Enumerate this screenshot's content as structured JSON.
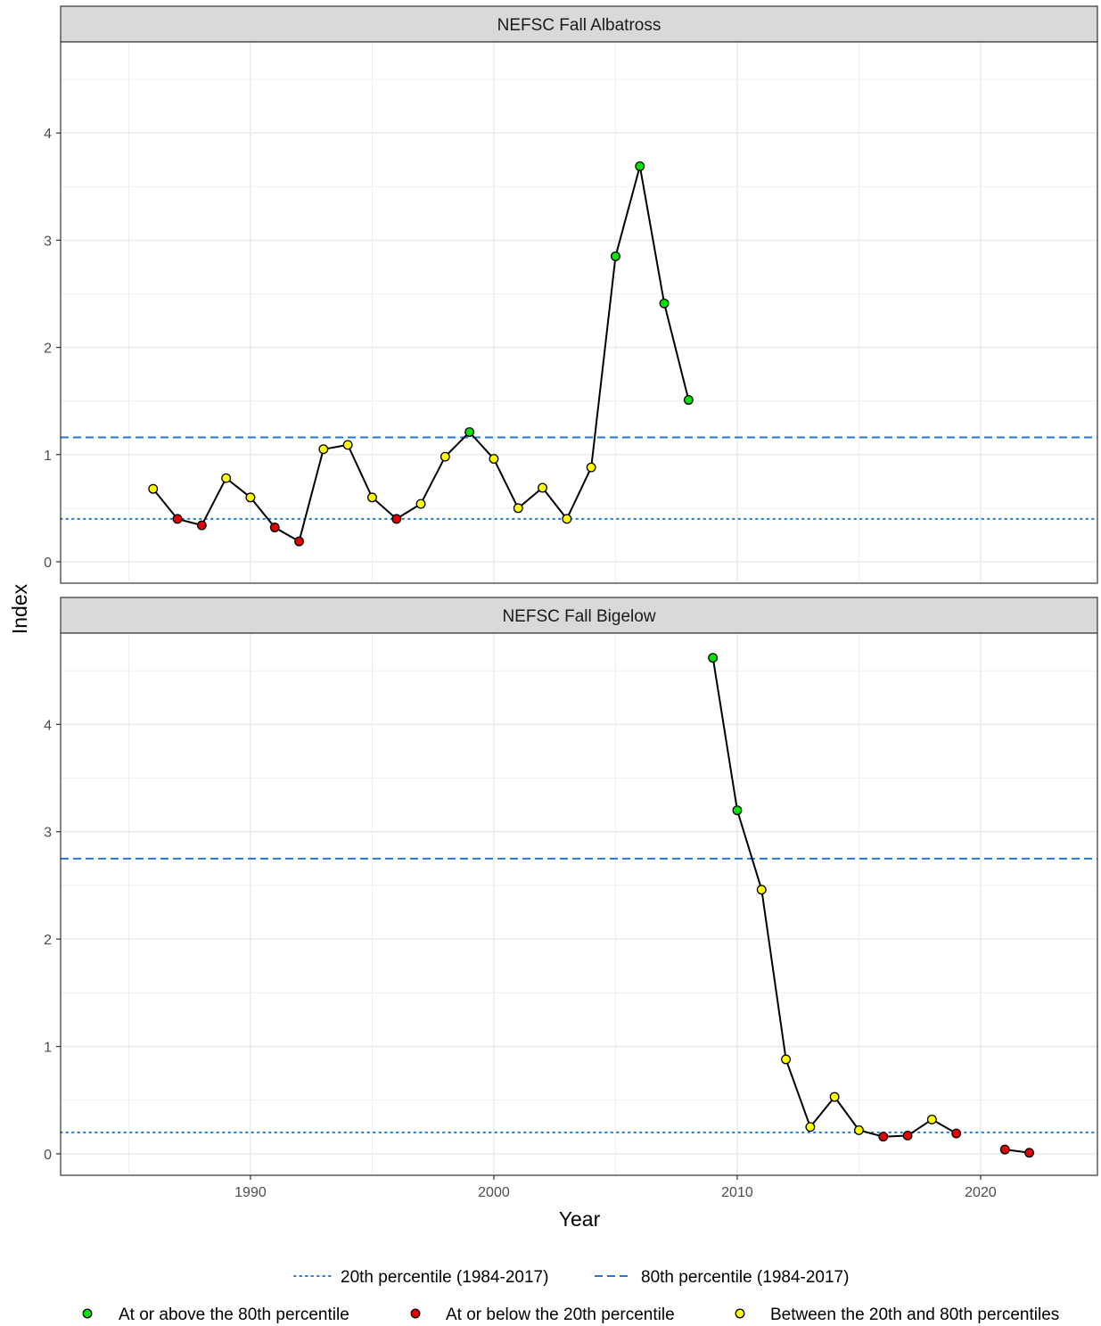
{
  "chart_data": {
    "type": "line",
    "xlabel": "Year",
    "ylabel": "Index",
    "xlim": [
      1982.2,
      2024.8
    ],
    "x_ticks": [
      1990,
      2000,
      2010,
      2020
    ],
    "x_tick_labels": [
      "1990",
      "2000",
      "2010",
      "2020"
    ],
    "x_minor_ticks": [
      1985,
      1995,
      2005,
      2015
    ],
    "y_ticks": [
      0,
      1,
      2,
      3,
      4
    ],
    "y_tick_labels": [
      "0",
      "1",
      "2",
      "3",
      "4"
    ],
    "y_minor_ticks": [
      0.5,
      1.5,
      2.5,
      3.5,
      4.5
    ],
    "ylim": [
      -0.2,
      4.85
    ],
    "grid": true,
    "colors": {
      "above": "#00e600",
      "below": "#e60000",
      "between": "#ffff00",
      "threshold_line": "#1f78d4",
      "series_line": "#000000",
      "strip_fill": "#d9d9d9",
      "grid": "#ebebeb"
    },
    "panels": [
      {
        "strip": "NEFSC Fall Albatross",
        "p20": 0.4,
        "p80": 1.16,
        "segments": [
          [
            {
              "x": 1986,
              "y": 0.68,
              "cat": "between"
            },
            {
              "x": 1987,
              "y": 0.4,
              "cat": "below"
            },
            {
              "x": 1988,
              "y": 0.34,
              "cat": "below"
            },
            {
              "x": 1989,
              "y": 0.78,
              "cat": "between"
            },
            {
              "x": 1990,
              "y": 0.6,
              "cat": "between"
            },
            {
              "x": 1991,
              "y": 0.32,
              "cat": "below"
            },
            {
              "x": 1992,
              "y": 0.19,
              "cat": "below"
            },
            {
              "x": 1993,
              "y": 1.05,
              "cat": "between"
            },
            {
              "x": 1994,
              "y": 1.09,
              "cat": "between"
            },
            {
              "x": 1995,
              "y": 0.6,
              "cat": "between"
            },
            {
              "x": 1996,
              "y": 0.4,
              "cat": "below"
            },
            {
              "x": 1997,
              "y": 0.54,
              "cat": "between"
            },
            {
              "x": 1998,
              "y": 0.98,
              "cat": "between"
            },
            {
              "x": 1999,
              "y": 1.21,
              "cat": "above"
            },
            {
              "x": 2000,
              "y": 0.96,
              "cat": "between"
            },
            {
              "x": 2001,
              "y": 0.5,
              "cat": "between"
            },
            {
              "x": 2002,
              "y": 0.69,
              "cat": "between"
            },
            {
              "x": 2003,
              "y": 0.4,
              "cat": "between"
            },
            {
              "x": 2004,
              "y": 0.88,
              "cat": "between"
            },
            {
              "x": 2005,
              "y": 2.85,
              "cat": "above"
            },
            {
              "x": 2006,
              "y": 3.69,
              "cat": "above"
            },
            {
              "x": 2007,
              "y": 2.41,
              "cat": "above"
            },
            {
              "x": 2008,
              "y": 1.51,
              "cat": "above"
            }
          ]
        ]
      },
      {
        "strip": "NEFSC Fall Bigelow",
        "p20": 0.2,
        "p80": 2.75,
        "segments": [
          [
            {
              "x": 2009,
              "y": 4.62,
              "cat": "above"
            },
            {
              "x": 2010,
              "y": 3.2,
              "cat": "above"
            },
            {
              "x": 2011,
              "y": 2.46,
              "cat": "between"
            },
            {
              "x": 2012,
              "y": 0.88,
              "cat": "between"
            },
            {
              "x": 2013,
              "y": 0.25,
              "cat": "between"
            },
            {
              "x": 2014,
              "y": 0.53,
              "cat": "between"
            },
            {
              "x": 2015,
              "y": 0.22,
              "cat": "between"
            },
            {
              "x": 2016,
              "y": 0.16,
              "cat": "below"
            },
            {
              "x": 2017,
              "y": 0.17,
              "cat": "below"
            },
            {
              "x": 2018,
              "y": 0.32,
              "cat": "between"
            },
            {
              "x": 2019,
              "y": 0.19,
              "cat": "below"
            }
          ],
          [
            {
              "x": 2021,
              "y": 0.04,
              "cat": "below"
            },
            {
              "x": 2022,
              "y": 0.01,
              "cat": "below"
            }
          ]
        ]
      }
    ],
    "legend": {
      "position": "bottom",
      "lines": [
        {
          "label": "20th percentile (1984-2017)",
          "style": "dotted"
        },
        {
          "label": "80th percentile (1984-2017)",
          "style": "dashed"
        }
      ],
      "points": [
        {
          "label": "At or above the 80th percentile",
          "cat": "above"
        },
        {
          "label": "At or below the 20th percentile",
          "cat": "below"
        },
        {
          "label": "Between the 20th and 80th percentiles",
          "cat": "between"
        }
      ]
    }
  }
}
